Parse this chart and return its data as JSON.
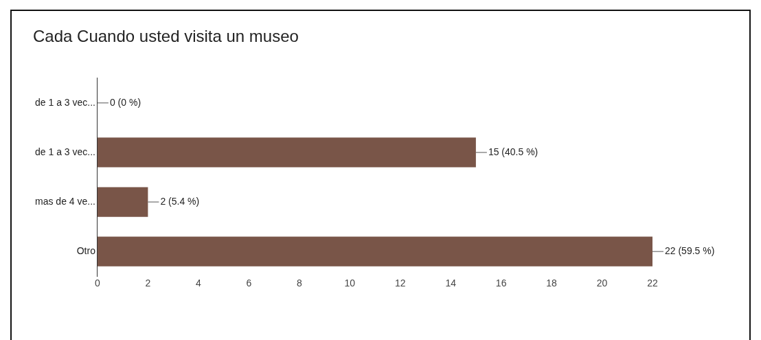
{
  "chart_data": {
    "type": "bar",
    "orientation": "horizontal",
    "title": "Cada Cuando usted visita un museo",
    "categories": [
      "de 1 a 3 vec...",
      "de 1 a 3 vec...",
      "mas de 4 ve...",
      "Otro"
    ],
    "values": [
      0,
      15,
      2,
      22
    ],
    "value_labels": [
      "0 (0 %)",
      "15 (40.5 %)",
      "2 (5.4 %)",
      "22 (59.5 %)"
    ],
    "color": "#795548",
    "xlim": [
      0,
      22
    ],
    "xticks": [
      0,
      2,
      4,
      6,
      8,
      10,
      12,
      14,
      16,
      18,
      20,
      22
    ],
    "grid": false,
    "legend": false
  }
}
